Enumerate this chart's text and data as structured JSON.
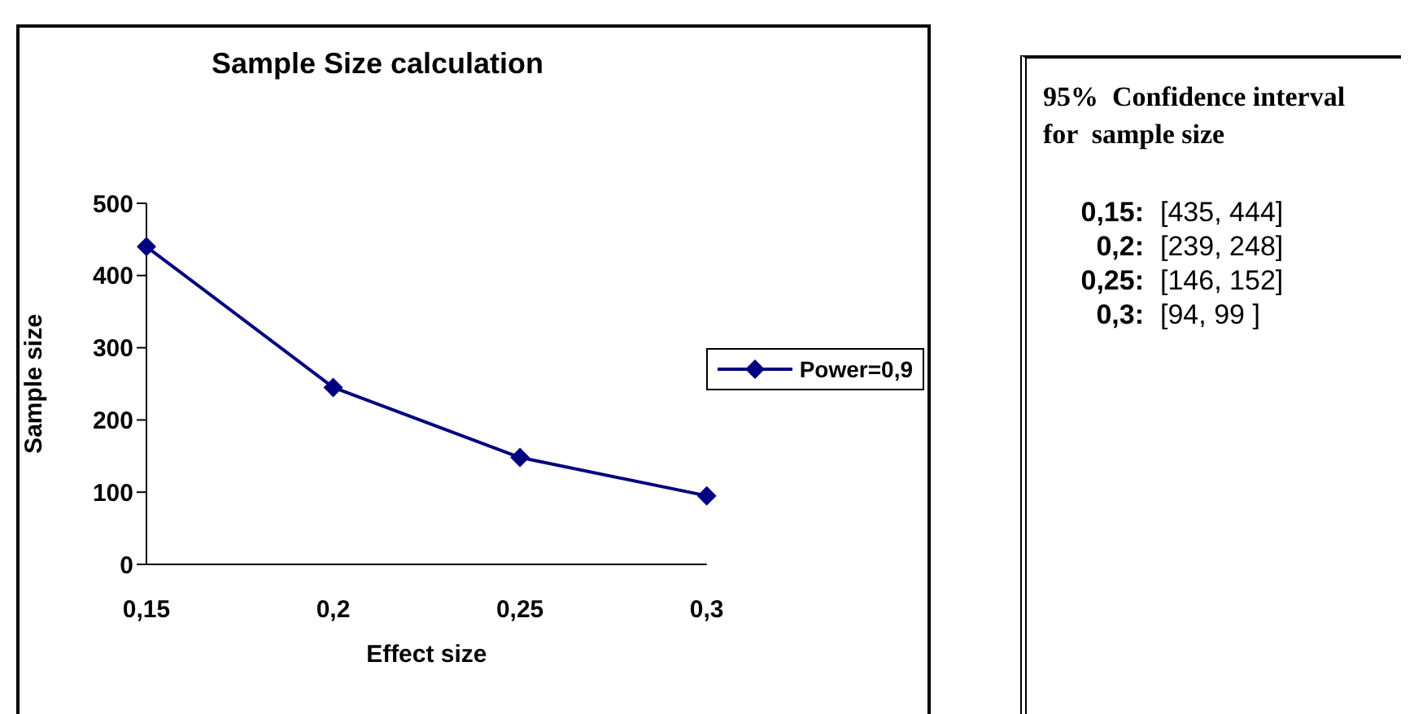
{
  "chart_data": {
    "type": "line",
    "title": "Sample Size calculation",
    "xlabel": "Effect size",
    "ylabel": "Sample size",
    "categories": [
      "0,15",
      "0,2",
      "0,25",
      "0,3"
    ],
    "series": [
      {
        "name": "Power=0,9",
        "color": "#000080",
        "values": [
          440,
          245,
          148,
          95
        ]
      }
    ],
    "ylim": [
      0,
      500
    ],
    "yticks": [
      0,
      100,
      200,
      300,
      400,
      500
    ],
    "grid": false,
    "legend": "right",
    "marker": "diamond",
    "line_style": "solid",
    "annotations": [
      "95%  Confidence interval for  sample size",
      "0,15: [435, 444]",
      "0,2: [239, 248]",
      "0,25: [146, 152]",
      "0,3: [94, 99 ]"
    ]
  }
}
